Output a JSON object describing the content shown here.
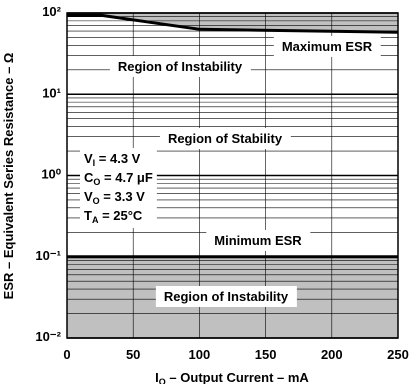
{
  "chart_data": {
    "type": "line",
    "xlabel": [
      "I",
      "O",
      " – Output Current – mA"
    ],
    "ylabel": "ESR – Equivalent Series Resistance – Ω",
    "xlim": [
      0,
      250
    ],
    "xticks": [
      0,
      50,
      100,
      150,
      200,
      250
    ],
    "ylim": [
      0.01,
      100
    ],
    "log_y": true,
    "yticks": [
      {
        "value": 100,
        "label": "10²"
      },
      {
        "value": 10,
        "label": "10¹"
      },
      {
        "value": 1,
        "label": "10⁰"
      },
      {
        "value": 0.1,
        "label": "10⁻¹"
      },
      {
        "value": 0.01,
        "label": "10⁻²"
      }
    ],
    "grid": true,
    "series": [
      {
        "color": "#000000",
        "shade": "above",
        "shade_color": "#c0c0c0",
        "x": [
          0,
          25,
          100,
          250
        ],
        "values": [
          94,
          94,
          63,
          58
        ]
      },
      {
        "color": "#000000",
        "shade": "below",
        "shade_color": "#c0c0c0",
        "x": [
          0,
          250
        ],
        "values": [
          0.1,
          0.1
        ]
      }
    ],
    "annotations": [
      "Maximum ESR",
      "Region of Instability",
      "Region of Stability",
      "Minimum ESR",
      "Region of Instability"
    ],
    "conditions": [
      [
        "V",
        "I",
        " = 4.3 V"
      ],
      [
        "C",
        "O",
        " = 4.7 μF"
      ],
      [
        "V",
        "O",
        " = 3.3 V"
      ],
      [
        "T",
        "A",
        " = 25°C"
      ]
    ]
  }
}
